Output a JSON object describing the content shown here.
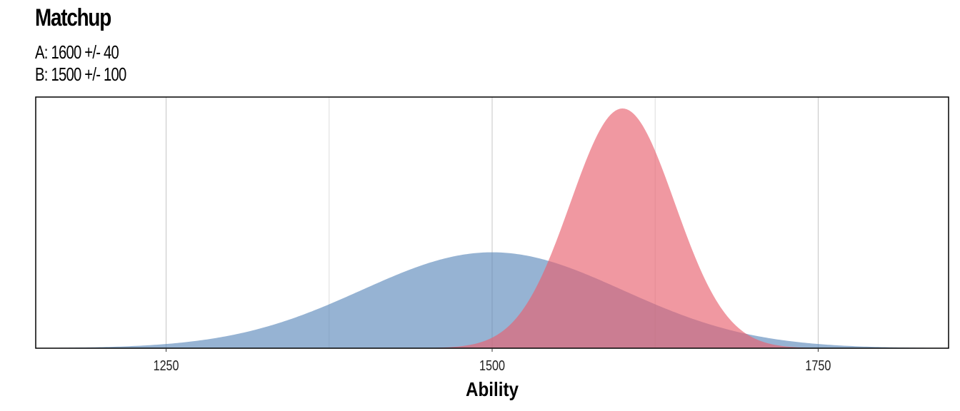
{
  "chart_data": {
    "type": "area",
    "title": "Matchup",
    "subtitle": [
      "A: 1600 +/- 40",
      "B: 1500 +/- 100"
    ],
    "xlabel": "Ability",
    "ylabel": "",
    "xlim": [
      1150,
      1850
    ],
    "x_ticks": [
      1250,
      1500,
      1750
    ],
    "x_tick_labels": [
      "1250",
      "1500",
      "1750"
    ],
    "x_minor_gridlines": [
      1125,
      1375,
      1625,
      1875
    ],
    "grid": "vertical",
    "legend": "none",
    "series": [
      {
        "distribution": "normal",
        "mean": 1600,
        "sd": 40,
        "color": "#e8616f"
      },
      {
        "distribution": "normal",
        "mean": 1500,
        "sd": 100,
        "color": "#5e8bbb"
      }
    ]
  }
}
